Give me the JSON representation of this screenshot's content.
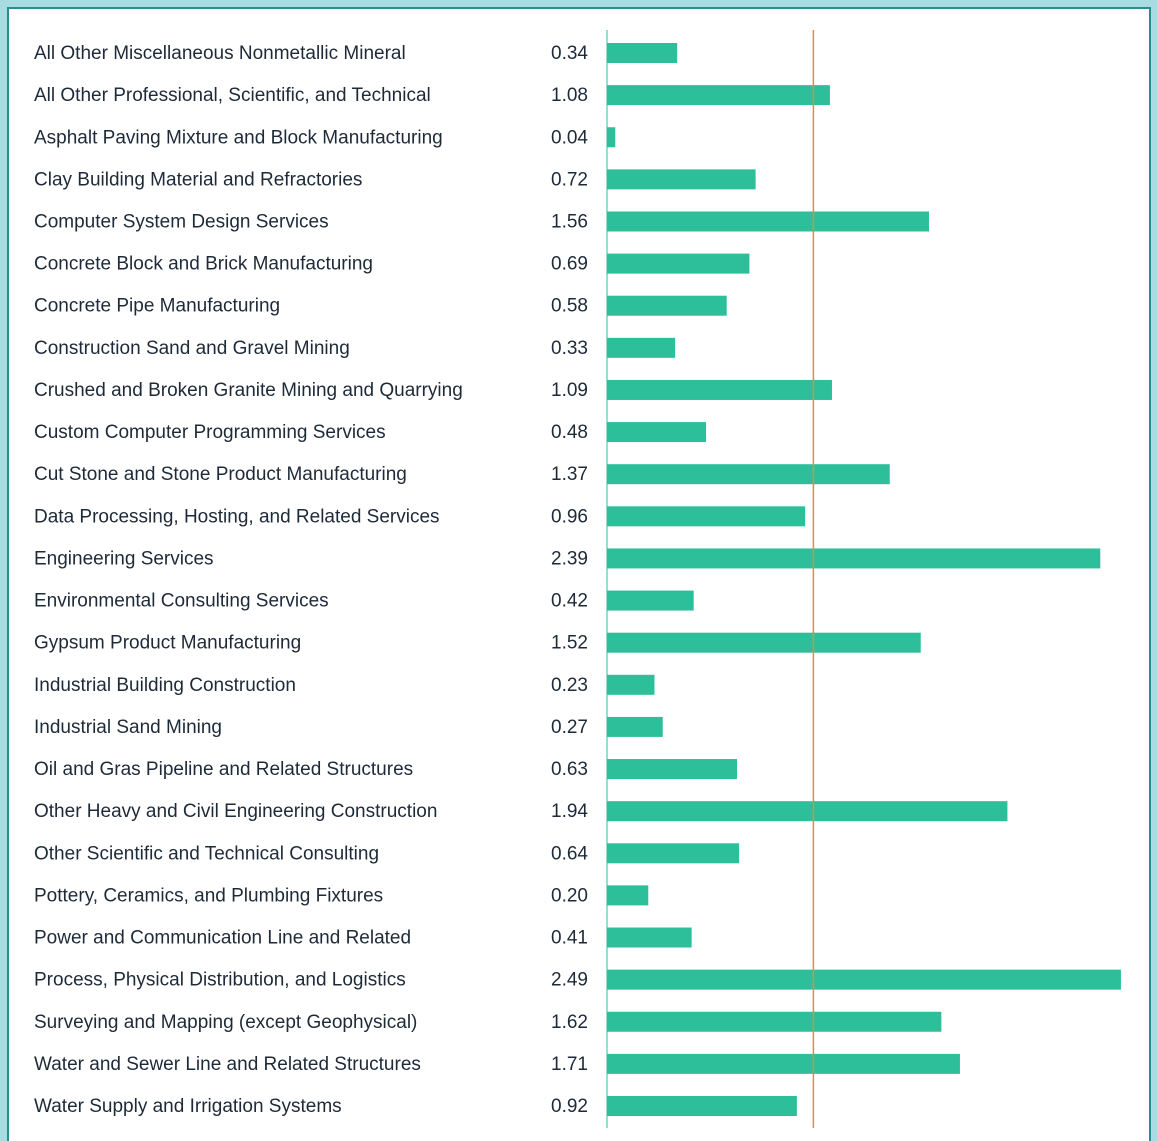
{
  "chart_data": {
    "type": "bar",
    "orientation": "horizontal",
    "categories": [
      "All Other Miscellaneous Nonmetallic Mineral",
      "All Other Professional, Scientific, and Technical",
      "Asphalt Paving Mixture and Block Manufacturing",
      "Clay Building Material and Refractories",
      "Computer System Design Services",
      "Concrete Block and Brick Manufacturing",
      "Concrete Pipe Manufacturing",
      "Construction Sand and Gravel Mining",
      "Crushed and Broken Granite Mining and Quarrying",
      "Custom Computer Programming Services",
      "Cut Stone and Stone Product Manufacturing",
      "Data Processing, Hosting, and Related Services",
      "Engineering Services",
      "Environmental Consulting Services",
      "Gypsum Product Manufacturing",
      "Industrial Building Construction",
      "Industrial Sand Mining",
      "Oil and Gras Pipeline and Related Structures",
      "Other Heavy and Civil Engineering Construction",
      "Other Scientific and Technical Consulting",
      "Pottery, Ceramics, and Plumbing Fixtures",
      "Power and Communication Line and Related",
      "Process, Physical Distribution, and Logistics",
      "Surveying and Mapping (except Geophysical)",
      "Water and Sewer Line and Related Structures",
      "Water Supply and Irrigation Systems"
    ],
    "values": [
      0.34,
      1.08,
      0.04,
      0.72,
      1.56,
      0.69,
      0.58,
      0.33,
      1.09,
      0.48,
      1.37,
      0.96,
      2.39,
      0.42,
      1.52,
      0.23,
      0.27,
      0.63,
      1.94,
      0.64,
      0.2,
      0.41,
      2.49,
      1.62,
      1.71,
      0.92
    ],
    "value_labels": [
      "0.34",
      "1.08",
      "0.04",
      "0.72",
      "1.56",
      "0.69",
      "0.58",
      "0.33",
      "1.09",
      "0.48",
      "1.37",
      "0.96",
      "2.39",
      "0.42",
      "1.52",
      "0.23",
      "0.27",
      "0.63",
      "1.94",
      "0.64",
      "0.20",
      "0.41",
      "2.49",
      "1.62",
      "1.71",
      "0.92"
    ],
    "color": "#2dbf9a",
    "reference_line": 1,
    "reference_color": "#e8893a",
    "xlim": [
      0,
      2.5
    ]
  }
}
